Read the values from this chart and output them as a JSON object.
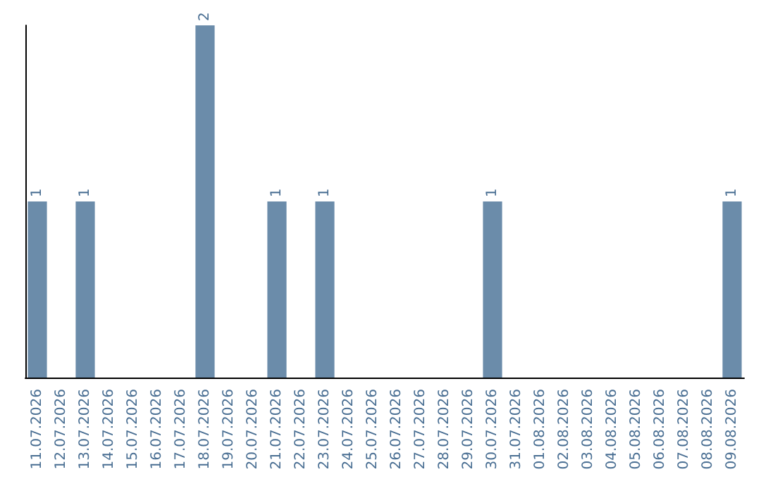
{
  "chart_data": {
    "type": "bar",
    "categories": [
      "11.07.2026",
      "12.07.2026",
      "13.07.2026",
      "14.07.2026",
      "15.07.2026",
      "16.07.2026",
      "17.07.2026",
      "18.07.2026",
      "19.07.2026",
      "20.07.2026",
      "21.07.2026",
      "22.07.2026",
      "23.07.2026",
      "24.07.2026",
      "25.07.2026",
      "26.07.2026",
      "27.07.2026",
      "28.07.2026",
      "29.07.2026",
      "30.07.2026",
      "31.07.2026",
      "01.08.2026",
      "02.08.2026",
      "03.08.2026",
      "04.08.2026",
      "05.08.2026",
      "06.08.2026",
      "07.08.2026",
      "08.08.2026",
      "09.08.2026"
    ],
    "values": [
      1,
      null,
      1,
      null,
      null,
      null,
      null,
      2,
      null,
      null,
      1,
      null,
      1,
      null,
      null,
      null,
      null,
      null,
      null,
      1,
      null,
      null,
      null,
      null,
      null,
      null,
      null,
      null,
      null,
      1
    ],
    "color": "#6b8caa",
    "data_labels": true,
    "tick_labels": "x",
    "grid": false
  }
}
